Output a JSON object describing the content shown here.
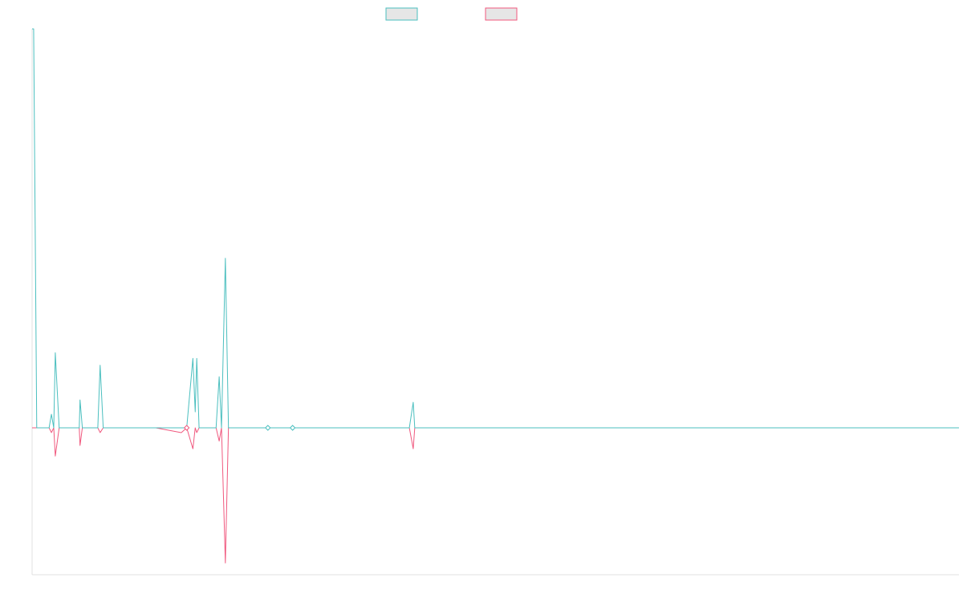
{
  "chart_data": {
    "type": "line",
    "title": "",
    "xlabel": "",
    "ylabel": "",
    "ylim": [
      -1,
      1
    ],
    "grid": false,
    "legend_placement": "top-center",
    "colors": {
      "series_1": "#4bbfbf",
      "series_2": "#f0587e",
      "legend_fill": "#e6e6e6",
      "axis": "#e0e0e0"
    },
    "x": [
      0,
      0.2,
      0.6,
      1,
      1.6,
      2.2,
      2.5,
      2.8,
      3,
      3.5,
      3.9,
      4.1,
      5.8,
      6.1,
      6.2,
      6.5,
      6.7,
      8.1,
      8.5,
      8.8,
      9.2,
      9.4,
      9.8,
      10,
      10.3,
      13.6,
      14,
      15.6,
      16,
      19.3,
      20,
      20.8,
      21.1,
      21.3,
      21.6,
      22.1,
      22.4,
      23.4,
      23.8,
      24.2,
      24.5,
      25,
      25.4,
      26,
      26.5,
      27.6,
      28.2,
      28.5,
      28.7,
      29,
      29.3,
      29.5,
      29.8,
      30.1,
      30.3,
      32.2,
      32.6,
      33.2,
      35.1,
      35.5,
      36.2,
      37.7,
      43.5,
      48.8,
      49.3,
      49.5,
      50,
      60,
      70,
      80,
      90,
      100,
      110,
      119.9
    ],
    "series": [
      {
        "values": [
          1,
          1,
          0,
          0,
          0,
          0,
          0.034,
          0,
          0.188,
          0,
          0,
          0,
          0,
          0,
          0.07,
          0,
          0,
          0,
          0,
          0.157,
          0,
          0,
          0,
          0,
          0,
          0,
          0,
          0,
          0,
          0,
          0,
          0.174,
          0.04,
          0.174,
          0,
          0,
          0,
          0,
          0,
          0.128,
          0,
          0.425,
          0,
          0,
          0,
          0,
          0,
          0,
          0,
          0,
          0,
          0,
          0,
          0,
          0,
          0,
          0,
          0,
          0,
          0,
          0,
          0,
          0,
          0,
          0.064,
          0,
          0,
          0,
          0,
          0,
          0,
          0,
          0,
          0
        ]
      },
      {
        "values": [
          0,
          0,
          0,
          0,
          0,
          0,
          -0.013,
          0,
          -0.077,
          0,
          0,
          0,
          0,
          0,
          -0.048,
          0,
          0,
          0,
          0,
          -0.013,
          0,
          0,
          0,
          0,
          0,
          0,
          0,
          0,
          0,
          -0.013,
          0,
          -0.057,
          0,
          -0.013,
          0,
          0,
          0,
          0,
          0,
          -0.036,
          0,
          -0.368,
          0,
          0,
          0,
          0,
          0,
          0,
          0,
          0,
          0,
          0,
          0,
          0,
          0,
          0,
          0,
          0,
          0,
          0,
          0,
          0,
          0,
          0,
          -0.057,
          0,
          0,
          0,
          0,
          0,
          0,
          0,
          0,
          0
        ]
      }
    ],
    "markers": [
      {
        "series": 1,
        "x": 20.0,
        "y": 0
      },
      {
        "series": 0,
        "x": 30.5,
        "y": 0
      },
      {
        "series": 0,
        "x": 33.7,
        "y": 0
      }
    ]
  }
}
